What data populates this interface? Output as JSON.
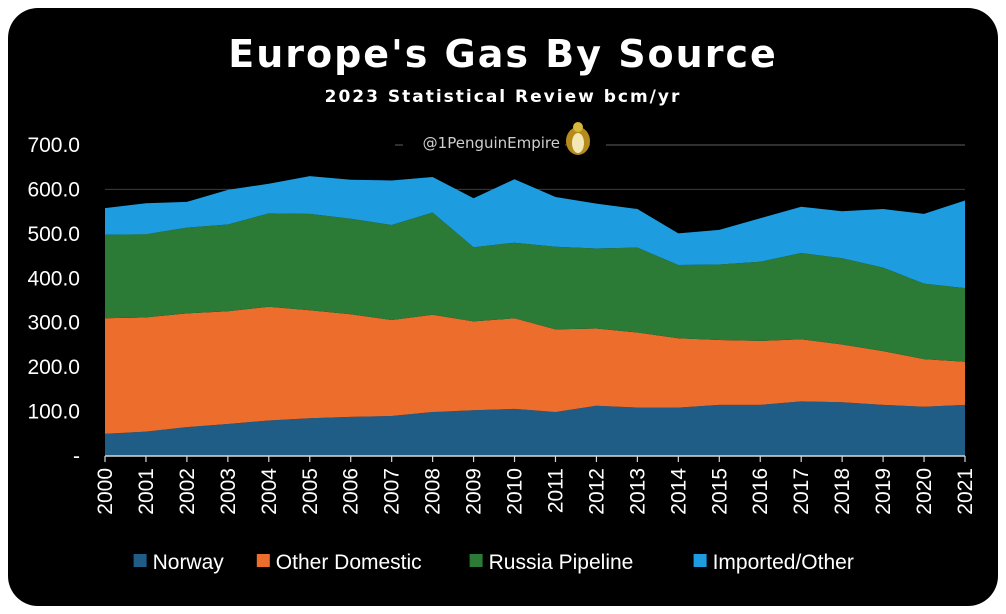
{
  "chart_data": {
    "type": "area",
    "stacked": true,
    "title": "Europe's Gas By Source",
    "subtitle": "2023 Statistical Review bcm/yr",
    "watermark": "@1PenguinEmpire",
    "x": [
      "2000",
      "2001",
      "2002",
      "2003",
      "2004",
      "2005",
      "2006",
      "2007",
      "2008",
      "2009",
      "2010",
      "2011",
      "2012",
      "2013",
      "2014",
      "2015",
      "2016",
      "2017",
      "2018",
      "2019",
      "2020",
      "2021"
    ],
    "ylim": [
      0,
      700
    ],
    "yticks": [
      0,
      100,
      200,
      300,
      400,
      500,
      600,
      700
    ],
    "ytick_labels": [
      "-",
      "100.0",
      "200.0",
      "300.0",
      "400.0",
      "500.0",
      "600.0",
      "700.0"
    ],
    "grid": "horizontal",
    "legend_position": "bottom",
    "series": [
      {
        "name": "Norway",
        "color": "#1f5c86",
        "values": [
          50,
          55,
          65,
          72,
          80,
          85,
          88,
          90,
          99,
          103,
          106,
          99,
          113,
          109,
          109,
          115,
          115,
          123,
          121,
          115,
          111,
          115
        ]
      },
      {
        "name": "Other Domestic",
        "color": "#ed6d2d",
        "values": [
          260,
          257,
          256,
          254,
          256,
          243,
          231,
          216,
          219,
          200,
          204,
          186,
          174,
          169,
          156,
          146,
          144,
          140,
          130,
          121,
          107,
          97
        ]
      },
      {
        "name": "Russia Pipeline",
        "color": "#2b7a35",
        "values": [
          188,
          187,
          193,
          195,
          210,
          217,
          215,
          214,
          230,
          167,
          170,
          186,
          180,
          191,
          165,
          170,
          178,
          194,
          194,
          188,
          170,
          166
        ]
      },
      {
        "name": "Imported/Other",
        "color": "#1d9de0",
        "values": [
          60,
          70,
          58,
          78,
          67,
          85,
          88,
          100,
          80,
          110,
          143,
          112,
          101,
          87,
          71,
          78,
          98,
          104,
          106,
          132,
          157,
          197
        ]
      }
    ]
  }
}
